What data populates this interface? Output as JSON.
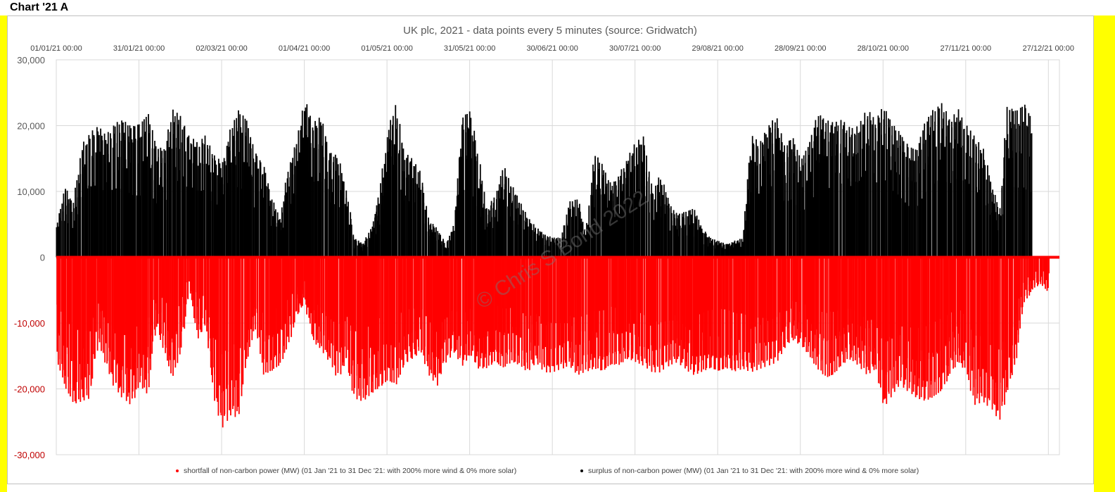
{
  "page": {
    "title": "Chart '21 A"
  },
  "chart_data": {
    "type": "scatter",
    "title": "UK plc, 2021 - data points every 5 minutes (source: Gridwatch)",
    "watermark": "© Chris S Bond 2022",
    "xlim": [
      "01/01/21 00:00",
      "31/12/21 00:00"
    ],
    "x_tick_labels": [
      "01/01/21 00:00",
      "31/01/21 00:00",
      "02/03/21 00:00",
      "01/04/21 00:00",
      "01/05/21 00:00",
      "31/05/21 00:00",
      "30/06/21 00:00",
      "30/07/21 00:00",
      "29/08/21 00:00",
      "28/09/21 00:00",
      "28/10/21 00:00",
      "27/11/21 00:00",
      "27/12/21 00:00"
    ],
    "x_axis_position": "top",
    "ylim": [
      -30000,
      30000
    ],
    "y_ticks": [
      30000,
      20000,
      10000,
      0,
      -10000,
      -20000,
      -30000
    ],
    "y_tick_labels": [
      "30,000",
      "20,000",
      "10,000",
      "0",
      "-10,000",
      "-20,000",
      "-30,000"
    ],
    "negative_tick_color": "#c00000",
    "grid": true,
    "legend_position": "bottom",
    "series": [
      {
        "name": "shortfall of non-carbon power (MW) (01 Jan '21 to 31 Dec '21: with 200% more wind & 0% more solar)",
        "color": "#ff0000",
        "envelope_dates": [
          "01/01/21",
          "04/01/21",
          "07/01/21",
          "10/01/21",
          "13/01/21",
          "16/01/21",
          "19/01/21",
          "22/01/21",
          "25/01/21",
          "28/01/21",
          "31/01/21",
          "03/02/21",
          "06/02/21",
          "09/02/21",
          "12/02/21",
          "15/02/21",
          "18/02/21",
          "21/02/21",
          "24/02/21",
          "27/02/21",
          "02/03/21",
          "05/03/21",
          "08/03/21",
          "11/03/21",
          "14/03/21",
          "17/03/21",
          "20/03/21",
          "23/03/21",
          "26/03/21",
          "29/03/21",
          "01/04/21",
          "04/04/21",
          "07/04/21",
          "10/04/21",
          "13/04/21",
          "16/04/21",
          "19/04/21",
          "22/04/21",
          "25/04/21",
          "28/04/21",
          "01/05/21",
          "04/05/21",
          "07/05/21",
          "10/05/21",
          "13/05/21",
          "16/05/21",
          "19/05/21",
          "22/05/21",
          "25/05/21",
          "28/05/21",
          "31/05/21",
          "03/06/21",
          "06/06/21",
          "09/06/21",
          "12/06/21",
          "15/06/21",
          "18/06/21",
          "21/06/21",
          "24/06/21",
          "27/06/21",
          "30/06/21",
          "03/07/21",
          "06/07/21",
          "09/07/21",
          "12/07/21",
          "15/07/21",
          "18/07/21",
          "21/07/21",
          "24/07/21",
          "27/07/21",
          "30/07/21",
          "02/08/21",
          "05/08/21",
          "08/08/21",
          "11/08/21",
          "14/08/21",
          "17/08/21",
          "20/08/21",
          "23/08/21",
          "26/08/21",
          "29/08/21",
          "01/09/21",
          "04/09/21",
          "07/09/21",
          "10/09/21",
          "13/09/21",
          "16/09/21",
          "19/09/21",
          "22/09/21",
          "25/09/21",
          "28/09/21",
          "01/10/21",
          "04/10/21",
          "07/10/21",
          "10/10/21",
          "13/10/21",
          "16/10/21",
          "19/10/21",
          "22/10/21",
          "25/10/21",
          "28/10/21",
          "31/10/21",
          "03/11/21",
          "06/11/21",
          "09/11/21",
          "12/11/21",
          "15/11/21",
          "18/11/21",
          "21/11/21",
          "24/11/21",
          "27/11/21",
          "30/11/21",
          "03/12/21",
          "06/12/21",
          "09/12/21",
          "12/12/21",
          "15/12/21",
          "18/12/21",
          "21/12/21",
          "24/12/21",
          "27/12/21",
          "30/12/21"
        ],
        "min_values": [
          -16000,
          -20000,
          -22500,
          -22000,
          -21500,
          -13000,
          -16500,
          -20000,
          -21500,
          -22500,
          -19500,
          -21000,
          -10500,
          -14500,
          -18500,
          -14500,
          -5000,
          -12500,
          -10500,
          -21500,
          -26000,
          -24000,
          -24500,
          -15500,
          -10500,
          -18000,
          -17500,
          -16500,
          -13500,
          -9000,
          -7000,
          -13000,
          -14000,
          -16000,
          -18500,
          -16000,
          -21500,
          -22000,
          -21000,
          -20000,
          -19000,
          -19500,
          -16500,
          -15500,
          -14500,
          -18000,
          -19500,
          -16000,
          -14500,
          -16500,
          -15000,
          -17000,
          -17000,
          -16000,
          -17000,
          -16000,
          -16500,
          -17500,
          -16000,
          -17500,
          -17500,
          -17000,
          -16500,
          -18000,
          -17500,
          -17000,
          -17500,
          -16500,
          -16500,
          -15500,
          -16000,
          -16500,
          -17500,
          -17500,
          -16500,
          -16000,
          -17000,
          -18000,
          -17500,
          -17000,
          -17500,
          -17000,
          -17500,
          -17000,
          -17500,
          -17000,
          -16500,
          -16000,
          -14000,
          -12500,
          -13500,
          -15000,
          -17000,
          -18500,
          -18000,
          -16500,
          -15500,
          -16500,
          -18000,
          -17000,
          -23000,
          -21000,
          -19500,
          -20500,
          -21500,
          -22000,
          -21500,
          -20500,
          -18000,
          -16000,
          -17500,
          -22500,
          -22000,
          -23000,
          -25000,
          -20500,
          -16000,
          -7000,
          -5000,
          -4000,
          -5500
        ],
        "max_values": [
          0,
          0,
          0,
          0,
          0,
          0,
          0,
          0,
          0,
          0,
          0,
          0,
          0,
          0,
          0,
          0,
          0,
          0,
          0,
          0,
          0,
          0,
          0,
          0,
          0,
          0,
          0,
          0,
          0,
          0,
          0,
          0,
          0,
          0,
          0,
          0,
          0,
          0,
          0,
          0,
          0,
          0,
          0,
          0,
          0,
          0,
          0,
          0,
          0,
          0,
          0,
          0,
          0,
          0,
          0,
          0,
          0,
          0,
          0,
          0,
          0,
          0,
          0,
          0,
          0,
          0,
          0,
          0,
          0,
          0,
          0,
          0,
          0,
          0,
          0,
          0,
          0,
          0,
          0,
          0,
          0,
          0,
          0,
          0,
          0,
          0,
          0,
          0,
          0,
          0,
          0,
          0,
          0,
          0,
          0,
          0,
          0,
          0,
          0,
          0,
          0,
          0,
          0,
          0,
          0,
          0,
          0,
          0,
          0,
          0,
          0,
          0,
          0,
          0,
          0,
          0,
          0,
          0,
          0,
          0,
          0,
          0,
          0
        ]
      },
      {
        "name": "surplus of non-carbon power (MW) (01 Jan '21 to 31 Dec '21: with 200% more wind & 0% more solar)",
        "color": "#000000",
        "envelope_dates": [
          "01/01/21",
          "04/01/21",
          "07/01/21",
          "10/01/21",
          "13/01/21",
          "16/01/21",
          "19/01/21",
          "22/01/21",
          "25/01/21",
          "28/01/21",
          "31/01/21",
          "03/02/21",
          "06/02/21",
          "09/02/21",
          "12/02/21",
          "15/02/21",
          "18/02/21",
          "21/02/21",
          "24/02/21",
          "27/02/21",
          "02/03/21",
          "05/03/21",
          "08/03/21",
          "11/03/21",
          "14/03/21",
          "17/03/21",
          "20/03/21",
          "23/03/21",
          "26/03/21",
          "29/03/21",
          "01/04/21",
          "04/04/21",
          "07/04/21",
          "10/04/21",
          "13/04/21",
          "16/04/21",
          "19/04/21",
          "22/04/21",
          "25/04/21",
          "28/04/21",
          "01/05/21",
          "04/05/21",
          "07/05/21",
          "10/05/21",
          "13/05/21",
          "16/05/21",
          "19/05/21",
          "22/05/21",
          "25/05/21",
          "28/05/21",
          "31/05/21",
          "03/06/21",
          "06/06/21",
          "09/06/21",
          "12/06/21",
          "15/06/21",
          "18/06/21",
          "21/06/21",
          "24/06/21",
          "27/06/21",
          "30/06/21",
          "03/07/21",
          "06/07/21",
          "09/07/21",
          "12/07/21",
          "15/07/21",
          "18/07/21",
          "21/07/21",
          "24/07/21",
          "27/07/21",
          "30/07/21",
          "02/08/21",
          "05/08/21",
          "08/08/21",
          "11/08/21",
          "14/08/21",
          "17/08/21",
          "20/08/21",
          "23/08/21",
          "26/08/21",
          "29/08/21",
          "01/09/21",
          "04/09/21",
          "07/09/21",
          "10/09/21",
          "13/09/21",
          "16/09/21",
          "19/09/21",
          "22/09/21",
          "25/09/21",
          "28/09/21",
          "01/10/21",
          "04/10/21",
          "07/10/21",
          "10/10/21",
          "13/10/21",
          "16/10/21",
          "19/10/21",
          "22/10/21",
          "25/10/21",
          "28/10/21",
          "31/10/21",
          "03/11/21",
          "06/11/21",
          "09/11/21",
          "12/11/21",
          "15/11/21",
          "18/11/21",
          "21/11/21",
          "24/11/21",
          "27/11/21",
          "30/11/21",
          "03/12/21",
          "06/12/21",
          "09/12/21",
          "12/12/21",
          "15/12/21",
          "18/12/21",
          "21/12/21",
          "24/12/21",
          "27/12/21",
          "30/12/21"
        ],
        "min_values": [
          0,
          0,
          0,
          0,
          0,
          0,
          0,
          0,
          0,
          0,
          0,
          0,
          0,
          0,
          0,
          0,
          0,
          0,
          0,
          0,
          0,
          0,
          0,
          0,
          0,
          0,
          0,
          0,
          0,
          0,
          0,
          0,
          0,
          0,
          0,
          0,
          0,
          0,
          0,
          0,
          0,
          0,
          0,
          0,
          0,
          0,
          0,
          0,
          0,
          0,
          0,
          0,
          0,
          0,
          0,
          0,
          0,
          0,
          0,
          0,
          0,
          0,
          0,
          0,
          0,
          0,
          0,
          0,
          0,
          0,
          0,
          0,
          0,
          0,
          0,
          0,
          0,
          0,
          0,
          0,
          0,
          0,
          0,
          0,
          0,
          0,
          0,
          0,
          0,
          0,
          0,
          0,
          0,
          0,
          0,
          0,
          0,
          0,
          0,
          0,
          0,
          0,
          0,
          0,
          0,
          0,
          0,
          0,
          0,
          0,
          0,
          0,
          0,
          0,
          0,
          0,
          0,
          0,
          0,
          0,
          0,
          0,
          0
        ],
        "max_values": [
          5000,
          11000,
          8000,
          17000,
          19000,
          20000,
          18500,
          20500,
          21000,
          20000,
          20500,
          22000,
          17000,
          16500,
          22500,
          21500,
          18500,
          17500,
          18500,
          15500,
          14500,
          19500,
          22500,
          21000,
          16000,
          14000,
          9000,
          6000,
          13500,
          18000,
          24000,
          20500,
          21500,
          16000,
          15500,
          10000,
          3000,
          2000,
          4500,
          9500,
          19000,
          23500,
          16000,
          15000,
          13000,
          5500,
          4500,
          2000,
          5000,
          21500,
          22500,
          15500,
          7000,
          9500,
          14000,
          11000,
          8500,
          6000,
          4500,
          3500,
          3000,
          3000,
          8500,
          9000,
          3500,
          16000,
          14000,
          11000,
          12500,
          15000,
          17500,
          18500,
          10000,
          12500,
          8500,
          6500,
          7000,
          7500,
          4500,
          3000,
          2500,
          2000,
          2500,
          3000,
          18500,
          17500,
          20000,
          21500,
          17000,
          18500,
          15000,
          17500,
          22000,
          21000,
          20500,
          21000,
          19500,
          20000,
          22500,
          21000,
          23000,
          20500,
          19000,
          17000,
          16500,
          20500,
          22500,
          23500,
          21000,
          22500,
          20000,
          18500,
          16500,
          11500,
          7500,
          23000,
          22500,
          23500,
          21000
        ]
      }
    ]
  }
}
